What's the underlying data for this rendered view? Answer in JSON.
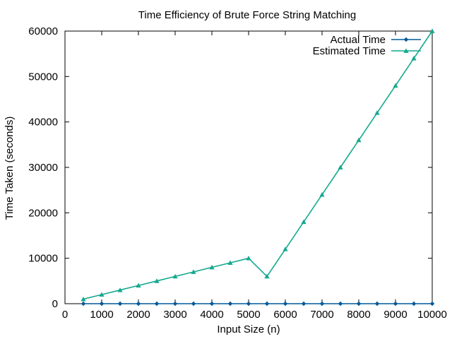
{
  "chart_data": {
    "type": "line",
    "title": "Time Efficiency of Brute Force String Matching",
    "xlabel": "Input Size (n)",
    "ylabel": "Time Taken (seconds)",
    "xlim": [
      0,
      10000
    ],
    "ylim": [
      0,
      60000
    ],
    "xticks": [
      "0",
      "1000",
      "2000",
      "3000",
      "4000",
      "5000",
      "6000",
      "7000",
      "8000",
      "9000",
      "10000"
    ],
    "yticks": [
      "0",
      "10000",
      "20000",
      "30000",
      "40000",
      "50000",
      "60000"
    ],
    "grid": false,
    "legend_position": "top-right",
    "x": [
      500,
      1000,
      1500,
      2000,
      2500,
      3000,
      3500,
      4000,
      4500,
      5000,
      5500,
      6000,
      6500,
      7000,
      7500,
      8000,
      8500,
      9000,
      9500,
      10000
    ],
    "series": [
      {
        "name": "Actual Time",
        "color": "#005a9c",
        "marker": "diamond",
        "values": [
          0,
          0,
          0,
          0,
          0,
          0,
          0,
          0,
          0,
          0,
          0,
          0,
          0,
          0,
          0,
          0,
          0,
          0,
          0,
          0
        ]
      },
      {
        "name": "Estimated Time",
        "color": "#15a88f",
        "marker": "triangle",
        "values": [
          1000,
          2000,
          3000,
          4000,
          5000,
          6000,
          7000,
          8000,
          9000,
          10000,
          6000,
          12000,
          18000,
          24000,
          30000,
          36000,
          42000,
          48000,
          54000,
          60000
        ]
      }
    ]
  }
}
